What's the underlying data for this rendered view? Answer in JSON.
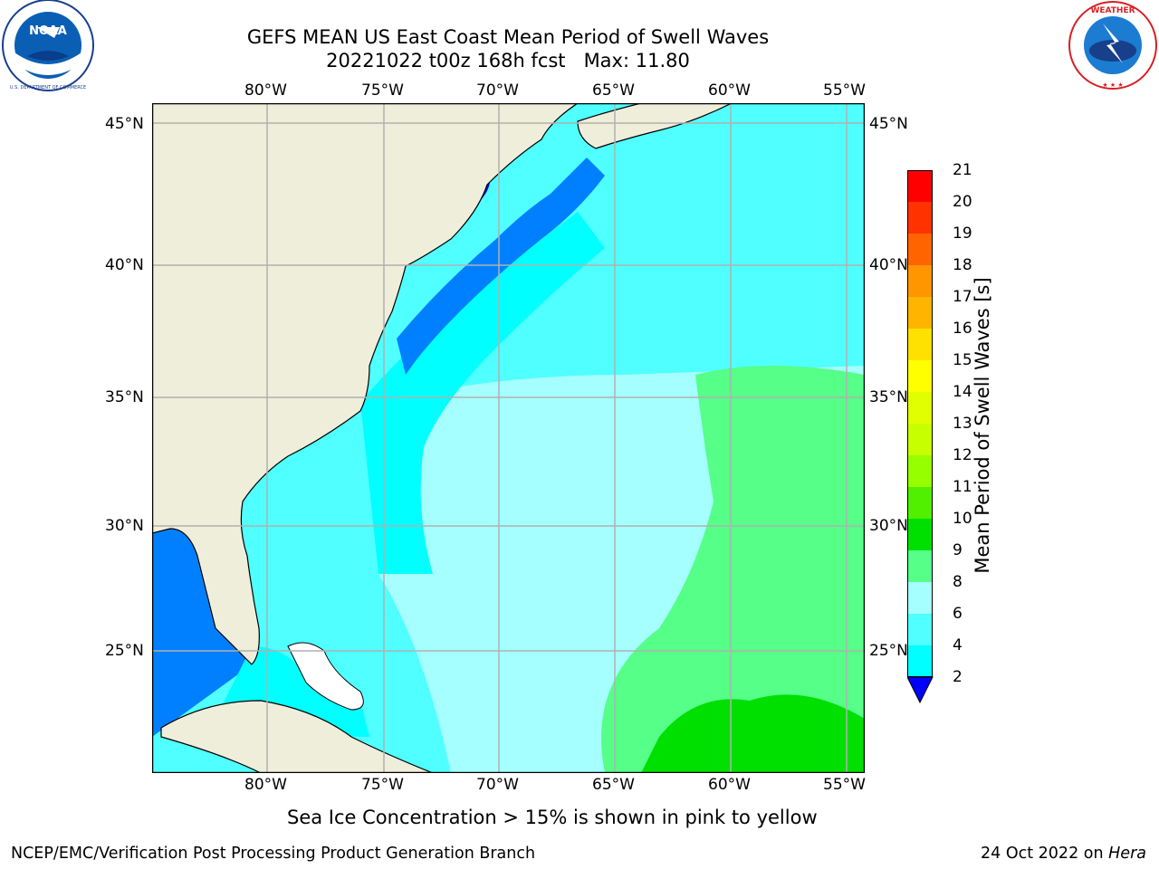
{
  "header": {
    "title_line1": "GEFS MEAN US East Coast Mean Period of Swell Waves",
    "title_line2": "20221022 t00z 168h fcst   Max: 11.80"
  },
  "logos": {
    "left": {
      "name": "NOAA",
      "ring_text": "NATIONAL OCEANIC AND ATMOSPHERIC ADMINISTRATION · U.S. DEPARTMENT OF COMMERCE"
    },
    "right": {
      "name": "NATIONAL WEATHER SERVICE"
    }
  },
  "map": {
    "lon_labels": [
      "80°W",
      "75°W",
      "70°W",
      "65°W",
      "60°W",
      "55°W"
    ],
    "lat_labels": [
      "45°N",
      "40°N",
      "35°N",
      "30°N",
      "25°N"
    ],
    "colors": {
      "land": "#efeedb",
      "grid": "#b0b0b0",
      "coast": "#000000"
    }
  },
  "colorbar": {
    "label": "Mean Period of Swell Waves [s]",
    "ticks": [
      "21",
      "20",
      "19",
      "18",
      "17",
      "16",
      "15",
      "14",
      "13",
      "12",
      "11",
      "10",
      "9",
      "8",
      "6",
      "4",
      "2"
    ],
    "colors": [
      "#ff0000",
      "#ff3200",
      "#ff6400",
      "#ff9600",
      "#ffb400",
      "#ffe100",
      "#ffff00",
      "#e1ff00",
      "#c8ff00",
      "#96ff00",
      "#50f000",
      "#00e000",
      "#55ff88",
      "#a6ffff",
      "#50ffff",
      "#00ffff",
      "#0080ff"
    ],
    "extend_color": "#0000ff"
  },
  "notes": {
    "sea_ice": "Sea Ice Concentration > 15% is shown in pink to yellow"
  },
  "footer": {
    "left": "NCEP/EMC/Verification Post Processing Product Generation Branch",
    "right_date": "24 Oct 2022 on ",
    "right_machine": "Hera"
  }
}
